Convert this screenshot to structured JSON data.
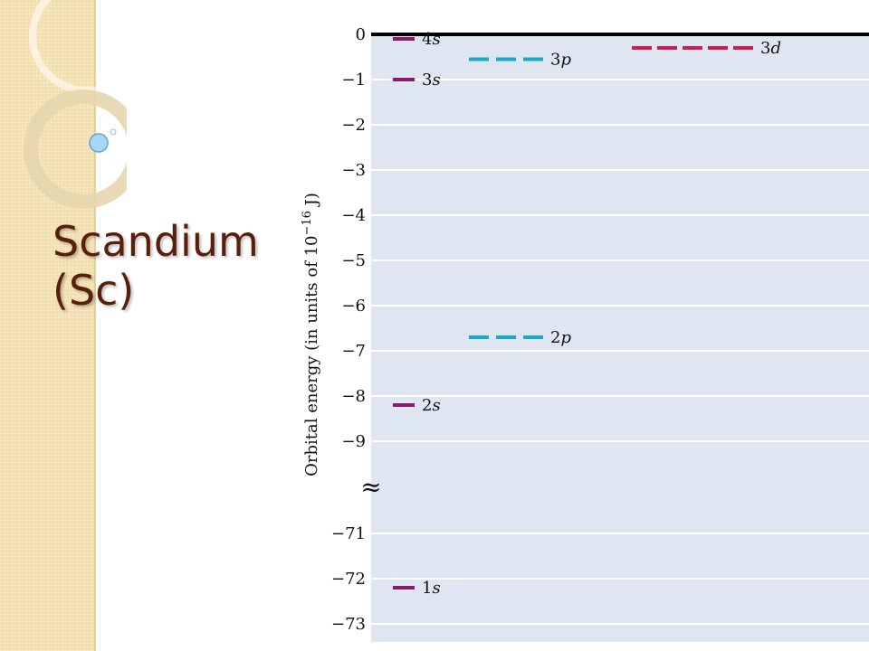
{
  "slide": {
    "title_line1": "Scandium",
    "title_line2": "(Sc)"
  },
  "diagram": {
    "y_label": "Orbital energy (in units of 10",
    "y_label_exp": "−16",
    "y_label_unit": " J)",
    "break_symbol": "≈",
    "ticks": [
      "0",
      "−1",
      "−2",
      "−3",
      "−4",
      "−5",
      "−6",
      "−7",
      "−8",
      "−9",
      "−71",
      "−72",
      "−73"
    ],
    "levels": [
      {
        "n": "4",
        "l": "s",
        "energy": -0.1,
        "dashes": 1,
        "column": 0,
        "color": "#8c1a6a"
      },
      {
        "n": "3",
        "l": "s",
        "energy": -1.0,
        "dashes": 1,
        "column": 0,
        "color": "#8c1a6a"
      },
      {
        "n": "2",
        "l": "s",
        "energy": -8.2,
        "dashes": 1,
        "column": 0,
        "color": "#8c1a6a"
      },
      {
        "n": "1",
        "l": "s",
        "energy": -72.2,
        "dashes": 1,
        "column": 0,
        "color": "#8c1a6a"
      },
      {
        "n": "3",
        "l": "p",
        "energy": -0.55,
        "dashes": 3,
        "column": 1,
        "color": "#19a9cc"
      },
      {
        "n": "2",
        "l": "p",
        "energy": -6.7,
        "dashes": 3,
        "column": 1,
        "color": "#19a9cc"
      },
      {
        "n": "3",
        "l": "d",
        "energy": -0.3,
        "dashes": 5,
        "column": 2,
        "color": "#cc1f4e"
      }
    ],
    "colors": {
      "plot_bg": "#dfe6f2",
      "grid": "#ffffff",
      "zero_line": "#000000"
    }
  }
}
